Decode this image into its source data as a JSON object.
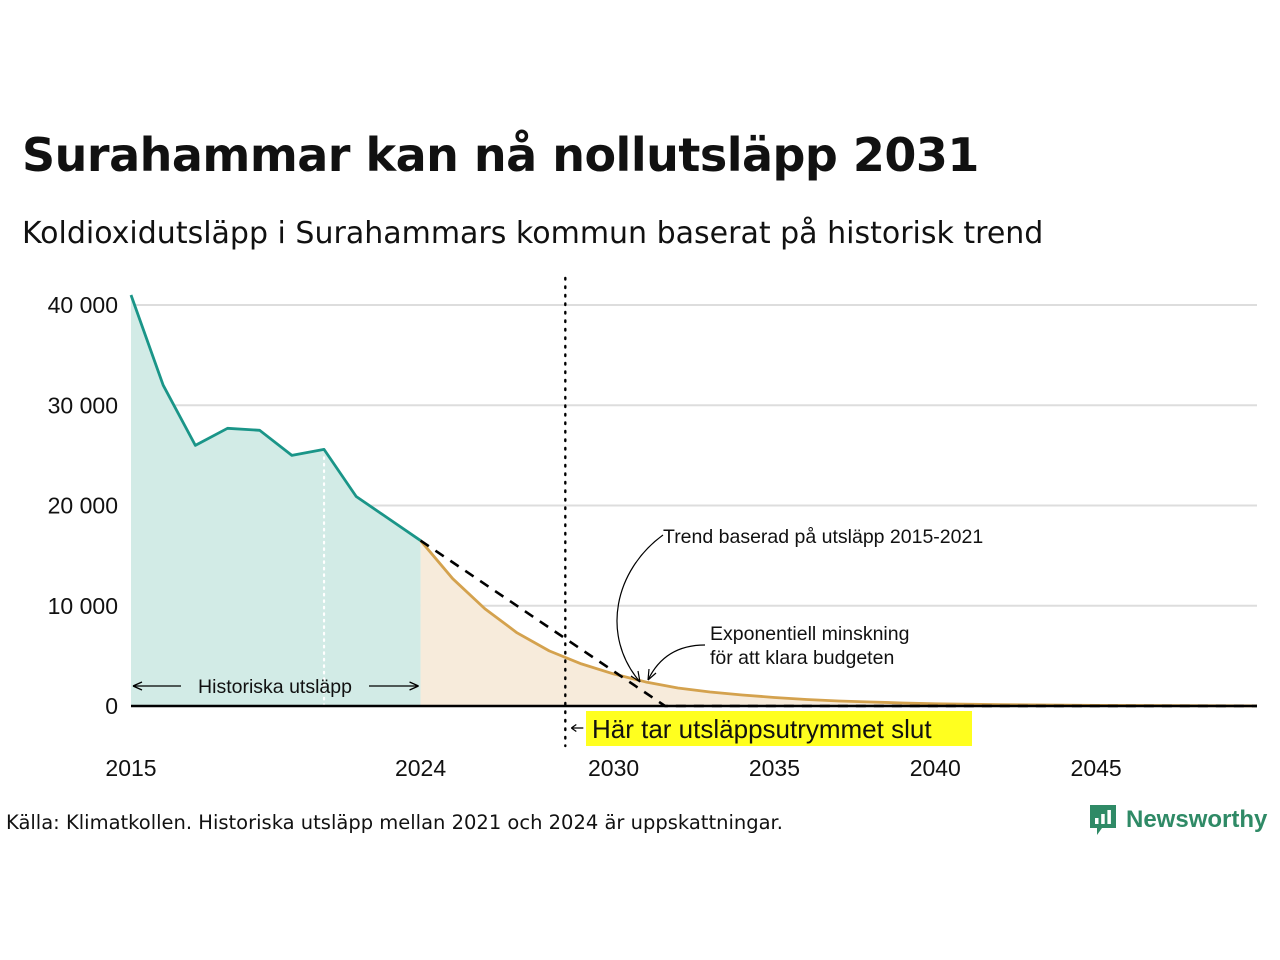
{
  "title": "Surahammar kan nå nollutsläpp 2031",
  "subtitle": "Koldioxidutsläpp i Surahammars kommun baserat på historisk trend",
  "source": "Källa: Klimatkollen. Historiska utsläpp mellan 2021 och 2024 är uppskattningar.",
  "brand": {
    "name": "Newsworthy",
    "icon": "newsworthy-logo-icon",
    "color": "#2f8a66"
  },
  "annotations": {
    "historical": "Historiska utsläpp",
    "trend": "Trend baserad på utsläpp 2015-2021",
    "exp_line1": "Exponentiell minskning",
    "exp_line2": "för att klara budgeten",
    "budget_end": "Här tar utsläppsutrymmet slut"
  },
  "chart_data": {
    "type": "area",
    "title": "Surahammar kan nå nollutsläpp 2031",
    "subtitle": "Koldioxidutsläpp i Surahammars kommun baserat på historisk trend",
    "xlim": [
      2015,
      2050
    ],
    "ylim": [
      0,
      40000
    ],
    "y_ticks": [
      0,
      10000,
      20000,
      30000,
      40000
    ],
    "y_tick_labels": [
      "0",
      "10 000",
      "20 000",
      "30 000",
      "40 000"
    ],
    "x_ticks": [
      2015,
      2024,
      2030,
      2035,
      2040,
      2045
    ],
    "x_tick_labels": [
      "2015",
      "2024",
      "2030",
      "2035",
      "2040",
      "2045"
    ],
    "grid": true,
    "colors": {
      "historical_line": "#1a9588",
      "historical_fill": "#d2ebe6",
      "budget_line": "#d4a24e",
      "budget_fill": "#f7ebdb",
      "trend_line": "#000000",
      "highlight": "#ffff1f"
    },
    "series": [
      {
        "name": "Historiska utsläpp",
        "x": [
          2015,
          2016,
          2017,
          2018,
          2019,
          2020,
          2021,
          2022,
          2023,
          2024
        ],
        "y": [
          41000,
          32000,
          26000,
          27700,
          27500,
          25000,
          25600,
          20900,
          18700,
          16500
        ]
      },
      {
        "name": "Exponentiell minskning för att klara budgeten",
        "x": [
          2024,
          2025,
          2026,
          2027,
          2028,
          2029,
          2030,
          2031,
          2032,
          2033,
          2034,
          2035,
          2036,
          2037,
          2038,
          2039,
          2040,
          2042,
          2045,
          2050
        ],
        "y": [
          16500,
          12700,
          9700,
          7300,
          5500,
          4200,
          3200,
          2400,
          1800,
          1400,
          1100,
          850,
          650,
          500,
          400,
          300,
          220,
          130,
          60,
          10
        ]
      },
      {
        "name": "Trend baserad på utsläpp 2015-2021",
        "x": [
          2024,
          2031.6,
          2050
        ],
        "y": [
          16500,
          0,
          0
        ]
      }
    ],
    "vlines": [
      {
        "x": 2028.5,
        "label": "Här tar utsläppsutrymmet slut"
      },
      {
        "x": 2021
      }
    ],
    "annotations": [
      "Historiska utsläpp",
      "Trend baserad på utsläpp 2015-2021",
      "Exponentiell minskning för att klara budgeten",
      "Här tar utsläppsutrymmet slut"
    ]
  }
}
